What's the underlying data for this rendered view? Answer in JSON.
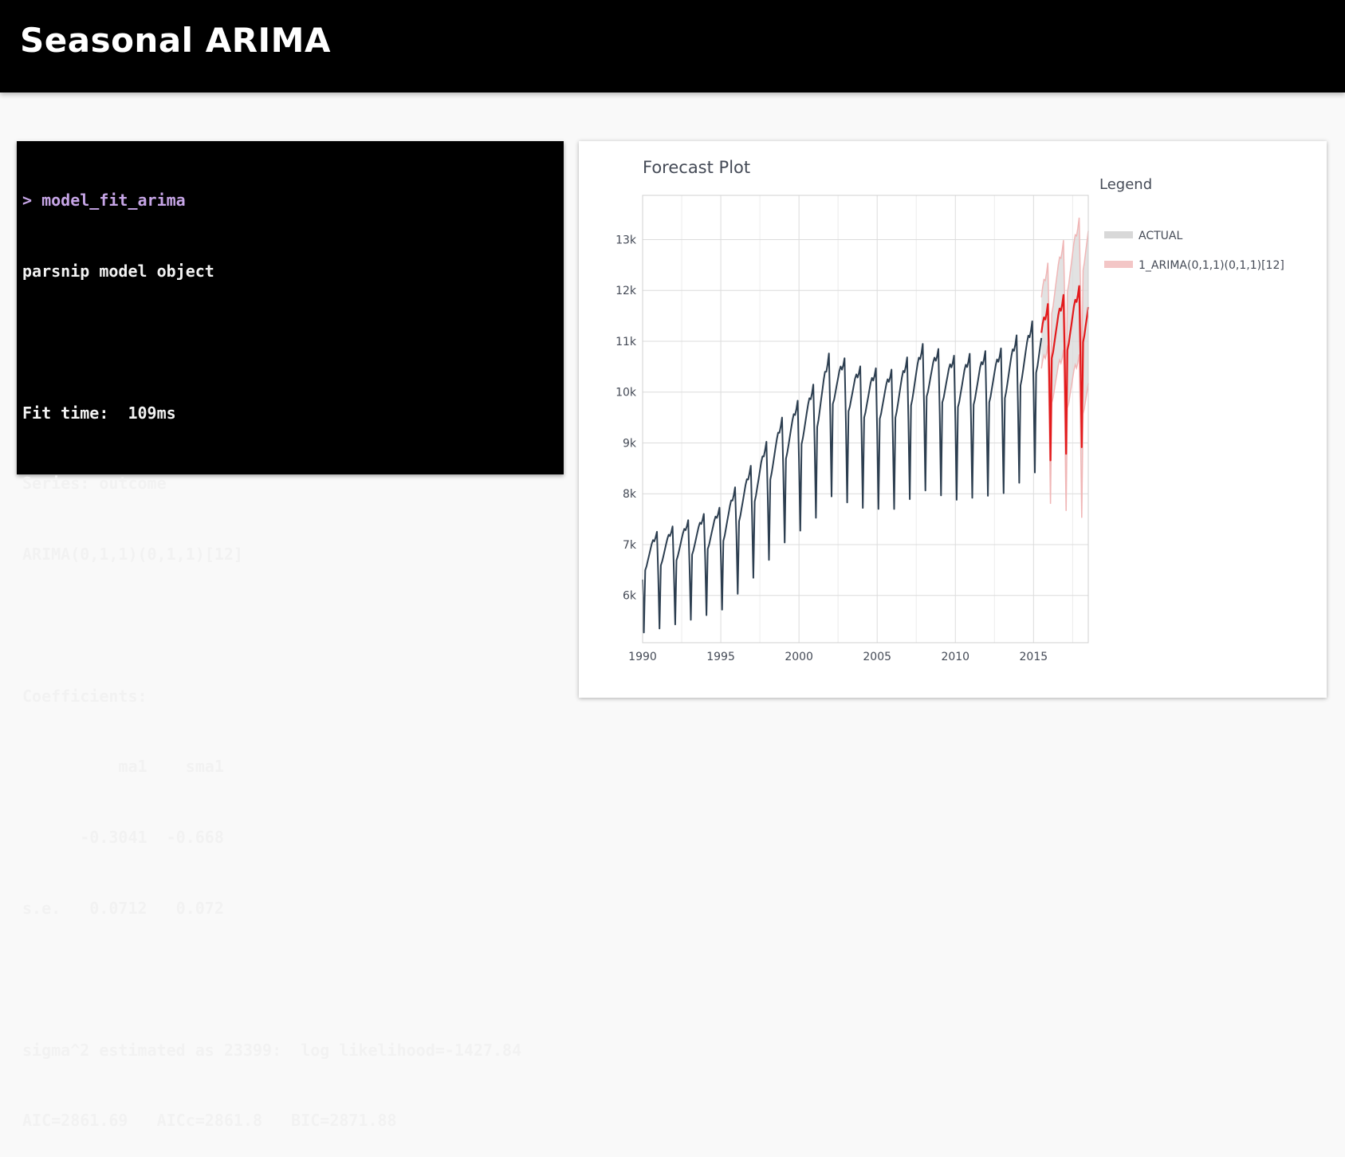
{
  "slide": {
    "title": "Seasonal ARIMA"
  },
  "console": {
    "lines": [
      "> model_fit_arima",
      "parsnip model object",
      "",
      "Fit time:  109ms",
      "Series: outcome",
      "ARIMA(0,1,1)(0,1,1)[12]",
      "",
      "Coefficients:",
      "          ma1    sma1",
      "      -0.3041  -0.668",
      "s.e.   0.0712   0.072",
      "",
      "sigma^2 estimated as 23399:  log likelihood=-1427.84",
      "AIC=2861.69   AICc=2861.8   BIC=2871.88"
    ]
  },
  "colors": {
    "actual": "#2c3e50",
    "forecast": "#e31a1c",
    "interval_fill": "#d8d8d8",
    "interval_edge": "#f0b6b6",
    "command": "#c6a5e6"
  },
  "chart_data": {
    "type": "line",
    "title": "Forecast Plot",
    "legend_title": "Legend",
    "legend_position": "right",
    "xlim": [
      1990,
      2018.5
    ],
    "ylim": [
      5070,
      13870
    ],
    "x_ticks": [
      1990,
      1995,
      2000,
      2005,
      2010,
      2015
    ],
    "x_tick_labels": [
      "1990",
      "1995",
      "2000",
      "2005",
      "2010",
      "2015"
    ],
    "y_ticks": [
      6000,
      7000,
      8000,
      9000,
      10000,
      11000,
      12000,
      13000
    ],
    "y_tick_labels": [
      "6k",
      "7k",
      "8k",
      "9k",
      "10k",
      "11k",
      "12k",
      "13k"
    ],
    "grid": true,
    "series": [
      {
        "name": "ACTUAL",
        "start": 1990,
        "freq": 12,
        "pattern": [
          0.935,
          0.78,
          0.96,
          0.97,
          0.985,
          1.0,
          1.015,
          1.03,
          1.04,
          1.035,
          1.045,
          1.06
        ],
        "level_anchors": [
          [
            1990,
            6750
          ],
          [
            1992,
            6950
          ],
          [
            1995,
            7300
          ],
          [
            1997,
            8100
          ],
          [
            1999,
            9000
          ],
          [
            2001,
            9600
          ],
          [
            2002,
            10200
          ],
          [
            2004,
            9900
          ],
          [
            2006,
            9850
          ],
          [
            2008,
            10350
          ],
          [
            2010,
            10100
          ],
          [
            2013,
            10250
          ],
          [
            2015.5,
            10900
          ]
        ],
        "end": 2015.5
      },
      {
        "name": "1_ARIMA(0,1,1)(0,1,1)[12]",
        "start": 2015.5,
        "freq": 12,
        "pattern": [
          0.935,
          0.78,
          0.96,
          0.97,
          0.985,
          1.0,
          1.015,
          1.03,
          1.04,
          1.035,
          1.045,
          1.06
        ],
        "level_anchors": [
          [
            2015.5,
            11000
          ],
          [
            2018.5,
            11500
          ]
        ],
        "end": 2018.5,
        "interval_halfwidth_start": 700,
        "interval_halfwidth_end": 1500
      }
    ]
  }
}
